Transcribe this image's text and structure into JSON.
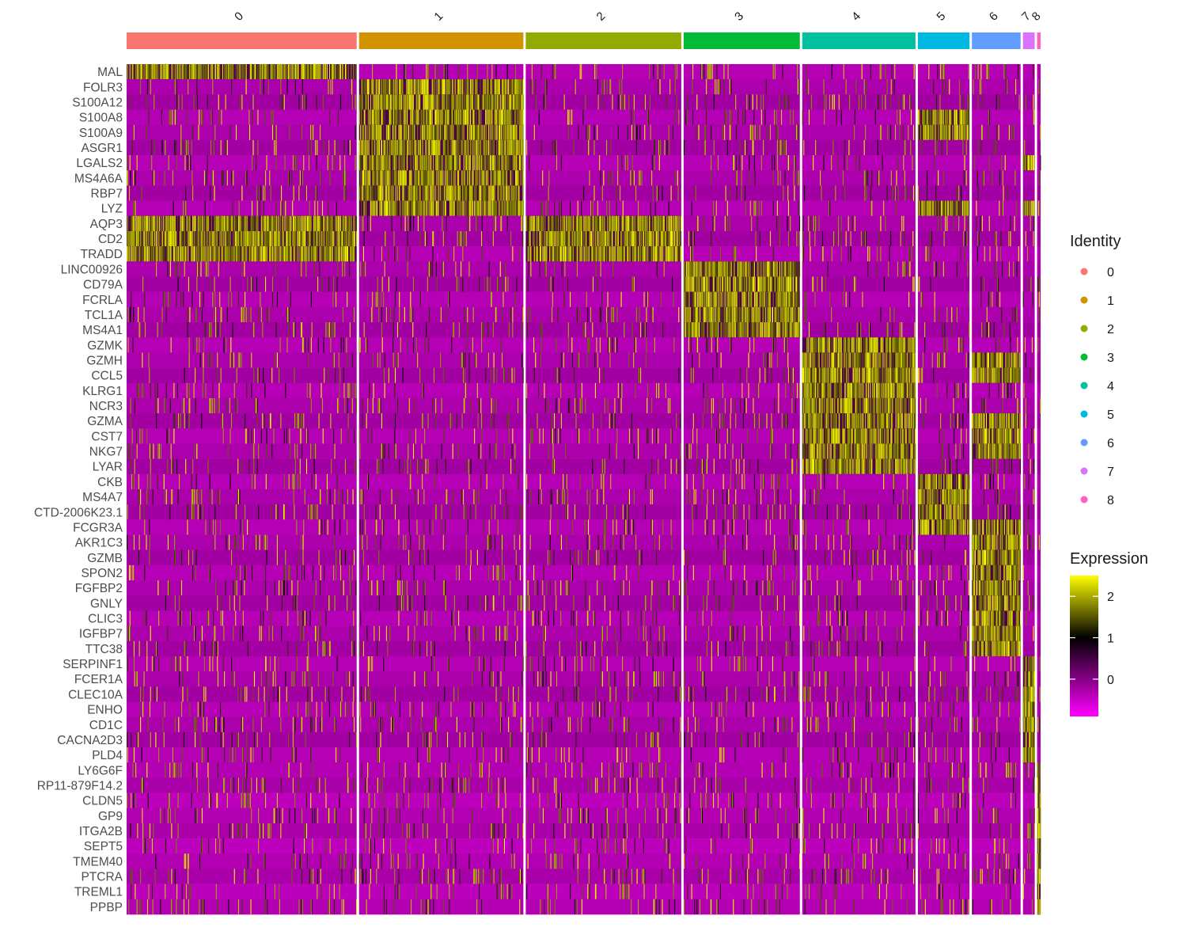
{
  "chart_data": {
    "type": "heatmap",
    "title": "",
    "x_groups": [
      {
        "label": "0",
        "color": "#F8766D"
      },
      {
        "label": "1",
        "color": "#D39200"
      },
      {
        "label": "2",
        "color": "#93AA00"
      },
      {
        "label": "3",
        "color": "#00BA38"
      },
      {
        "label": "4",
        "color": "#00C19F"
      },
      {
        "label": "5",
        "color": "#00B9E3"
      },
      {
        "label": "6",
        "color": "#619CFF"
      },
      {
        "label": "7",
        "color": "#DB72FB"
      },
      {
        "label": "8",
        "color": "#FF61C3"
      }
    ],
    "cells_per_group": [
      392,
      280,
      265,
      198,
      193,
      88,
      83,
      20,
      6
    ],
    "genes": [
      {
        "name": "MAL",
        "markers": [
          0
        ]
      },
      {
        "name": "FOLR3",
        "markers": [
          1
        ]
      },
      {
        "name": "S100A12",
        "markers": [
          1
        ]
      },
      {
        "name": "S100A8",
        "markers": [
          1,
          5
        ]
      },
      {
        "name": "S100A9",
        "markers": [
          1,
          5
        ]
      },
      {
        "name": "ASGR1",
        "markers": [
          1
        ]
      },
      {
        "name": "LGALS2",
        "markers": [
          1,
          7
        ]
      },
      {
        "name": "MS4A6A",
        "markers": [
          1
        ]
      },
      {
        "name": "RBP7",
        "markers": [
          1
        ]
      },
      {
        "name": "LYZ",
        "markers": [
          1,
          5,
          7
        ]
      },
      {
        "name": "AQP3",
        "markers": [
          0,
          2
        ]
      },
      {
        "name": "CD2",
        "markers": [
          0,
          2
        ]
      },
      {
        "name": "TRADD",
        "markers": [
          0,
          2
        ]
      },
      {
        "name": "LINC00926",
        "markers": [
          3
        ]
      },
      {
        "name": "CD79A",
        "markers": [
          3
        ]
      },
      {
        "name": "FCRLA",
        "markers": [
          3
        ]
      },
      {
        "name": "TCL1A",
        "markers": [
          3
        ]
      },
      {
        "name": "MS4A1",
        "markers": [
          3
        ]
      },
      {
        "name": "GZMK",
        "markers": [
          4
        ]
      },
      {
        "name": "GZMH",
        "markers": [
          4,
          6
        ]
      },
      {
        "name": "CCL5",
        "markers": [
          4,
          6
        ]
      },
      {
        "name": "KLRG1",
        "markers": [
          4
        ]
      },
      {
        "name": "NCR3",
        "markers": [
          4
        ]
      },
      {
        "name": "GZMA",
        "markers": [
          4,
          6
        ]
      },
      {
        "name": "CST7",
        "markers": [
          4,
          6
        ]
      },
      {
        "name": "NKG7",
        "markers": [
          4,
          6
        ]
      },
      {
        "name": "LYAR",
        "markers": [
          4
        ]
      },
      {
        "name": "CKB",
        "markers": [
          5
        ]
      },
      {
        "name": "MS4A7",
        "markers": [
          5
        ]
      },
      {
        "name": "CTD-2006K23.1",
        "markers": [
          5
        ]
      },
      {
        "name": "FCGR3A",
        "markers": [
          5,
          6
        ]
      },
      {
        "name": "AKR1C3",
        "markers": [
          6
        ]
      },
      {
        "name": "GZMB",
        "markers": [
          6
        ]
      },
      {
        "name": "SPON2",
        "markers": [
          6
        ]
      },
      {
        "name": "FGFBP2",
        "markers": [
          6
        ]
      },
      {
        "name": "GNLY",
        "markers": [
          6
        ]
      },
      {
        "name": "CLIC3",
        "markers": [
          6
        ]
      },
      {
        "name": "IGFBP7",
        "markers": [
          6
        ]
      },
      {
        "name": "TTC38",
        "markers": [
          6
        ]
      },
      {
        "name": "SERPINF1",
        "markers": [
          7
        ]
      },
      {
        "name": "FCER1A",
        "markers": [
          7
        ]
      },
      {
        "name": "CLEC10A",
        "markers": [
          7
        ]
      },
      {
        "name": "ENHO",
        "markers": [
          7
        ]
      },
      {
        "name": "CD1C",
        "markers": [
          7
        ]
      },
      {
        "name": "CACNA2D3",
        "markers": [
          7
        ]
      },
      {
        "name": "PLD4",
        "markers": [
          7
        ]
      },
      {
        "name": "LY6G6F",
        "markers": [
          8
        ]
      },
      {
        "name": "RP11-879F14.2",
        "markers": [
          8
        ]
      },
      {
        "name": "CLDN5",
        "markers": [
          8
        ]
      },
      {
        "name": "GP9",
        "markers": [
          8
        ]
      },
      {
        "name": "ITGA2B",
        "markers": [
          8
        ]
      },
      {
        "name": "SEPT5",
        "markers": [
          8
        ]
      },
      {
        "name": "TMEM40",
        "markers": [
          8
        ]
      },
      {
        "name": "PTCRA",
        "markers": [
          8
        ]
      },
      {
        "name": "TREML1",
        "markers": [
          8
        ]
      },
      {
        "name": "PPBP",
        "markers": [
          8
        ]
      }
    ],
    "color_scale": {
      "low": "#FF00FF",
      "mid": "#000000",
      "high": "#FFFF00",
      "ticks": [
        0,
        1,
        2
      ],
      "range": [
        -0.9,
        2.5
      ]
    },
    "legend_identity": {
      "title": "Identity",
      "placement": "right",
      "items": [
        "0",
        "1",
        "2",
        "3",
        "4",
        "5",
        "6",
        "7",
        "8"
      ]
    },
    "legend_expression": {
      "title": "Expression",
      "placement": "right"
    }
  }
}
